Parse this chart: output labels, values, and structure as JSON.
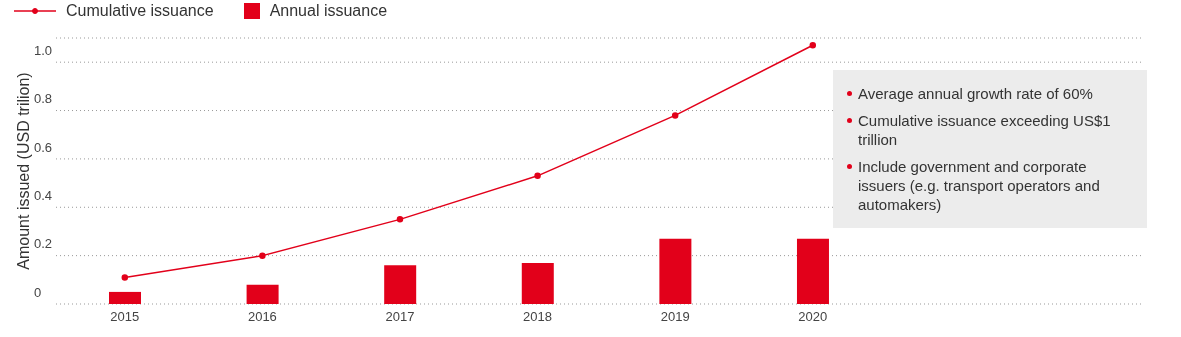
{
  "chart_data": {
    "type": "bar",
    "ylabel": "Amount issued (USD trilion)",
    "categories": [
      "2015",
      "2016",
      "2017",
      "2018",
      "2019",
      "2020"
    ],
    "series": [
      {
        "name": "Cumulative issuance",
        "type": "line",
        "color": "#e2001a",
        "values": [
          0.11,
          0.2,
          0.35,
          0.53,
          0.78,
          1.07
        ]
      },
      {
        "name": "Annual issuance",
        "color": "#e2001a",
        "values": [
          0.05,
          0.08,
          0.16,
          0.17,
          0.27,
          0.27
        ]
      }
    ],
    "ylim": [
      0,
      1.1
    ],
    "yticks": [
      0,
      0.2,
      0.4,
      0.6,
      0.8,
      {
        "value": 1,
        "label": "1.0"
      }
    ],
    "grid": "y",
    "legend": "top left",
    "marker": "circle",
    "line_style": "solid",
    "annotations": [
      "Average annual growth rate of 60%",
      "Cumulative issuance exceeding US$1 trillion",
      "Include government and corporate issuers (e.g. transport operators and automakers)"
    ]
  }
}
